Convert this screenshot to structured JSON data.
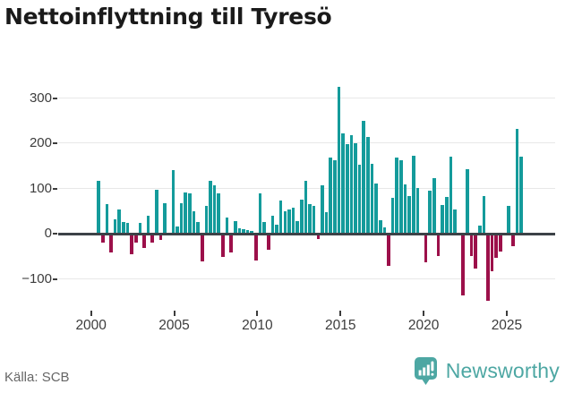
{
  "title": "Nettoinflyttning till Tyresö",
  "source": "Källa: SCB",
  "branding": {
    "name": "Newsworthy",
    "icon": "bar-chart-speech-bubble-pin-icon"
  },
  "colors": {
    "positive_bar": "#149b9b",
    "negative_bar": "#9c104a",
    "baseline": "#3d4247",
    "grid": "#e8e8e8",
    "title_text": "#1a1a1a",
    "axis_text": "#3c3c3c",
    "source_text": "#666666",
    "brand_teal": "#4da7a3"
  },
  "chart_data": {
    "type": "bar",
    "title": "Nettoinflyttning till Tyresö",
    "frequency": "quarterly",
    "start_quarter": "2000-Q1",
    "end_quarter": "2025-Q3",
    "x_tick_labels": [
      "2000",
      "2005",
      "2010",
      "2015",
      "2020",
      "2025"
    ],
    "y_tick_labels": [
      "300",
      "200",
      "100",
      "0",
      "−100"
    ],
    "y_ticks": [
      300,
      200,
      100,
      0,
      -100
    ],
    "ylim": [
      -160,
      360
    ],
    "grid": "horizontal",
    "legend": "none",
    "values": [
      115,
      -16,
      63,
      -38,
      30,
      51,
      23,
      22,
      -41,
      -16,
      22,
      -28,
      38,
      -15,
      95,
      -9,
      65,
      0,
      139,
      13,
      66,
      90,
      88,
      48,
      24,
      -57,
      60,
      115,
      104,
      87,
      -48,
      34,
      -38,
      25,
      10,
      8,
      5,
      3,
      -55,
      88,
      24,
      -31,
      38,
      18,
      71,
      48,
      51,
      56,
      26,
      74,
      114,
      63,
      60,
      -7,
      104,
      45,
      167,
      160,
      322,
      219,
      197,
      216,
      199,
      150,
      247,
      211,
      152,
      108,
      28,
      12,
      -67,
      78,
      167,
      161,
      106,
      81,
      171,
      99,
      0,
      -59,
      93,
      120,
      -46,
      62,
      80,
      169,
      51,
      0,
      -132,
      140,
      -46,
      -74,
      15,
      82,
      -144,
      -80,
      -50,
      -35,
      0,
      60,
      -24,
      230,
      169
    ]
  }
}
